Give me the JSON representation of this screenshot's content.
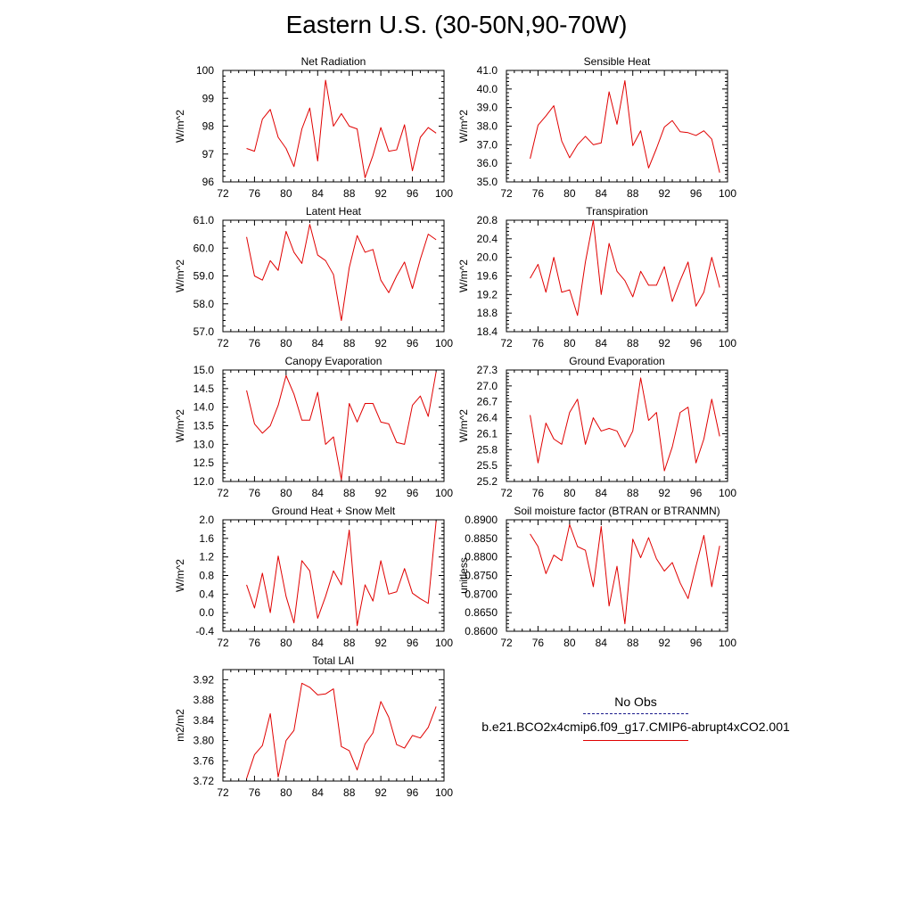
{
  "title": "Eastern U.S. (30-50N,90-70W)",
  "colors": {
    "model": "#e00000",
    "obs": "#1a1a8c",
    "axis": "#000000"
  },
  "legend": {
    "obs_label": "No Obs",
    "model_label": "b.e21.BCO2x4cmip6.f09_g17.CMIP6-abrupt4xCO2.001"
  },
  "chart_data": [
    {
      "type": "line",
      "title": "Net Radiation",
      "ylabel": "W/m^2",
      "xlim": [
        72,
        100
      ],
      "xticks": [
        "72",
        "76",
        "80",
        "84",
        "88",
        "92",
        "96",
        "100"
      ],
      "ylim": [
        96,
        100
      ],
      "yticks": [
        "96",
        "97",
        "98",
        "99",
        "100"
      ],
      "x": [
        75,
        76,
        77,
        78,
        79,
        80,
        81,
        82,
        83,
        84,
        85,
        86,
        87,
        88,
        89,
        90,
        91,
        92,
        93,
        94,
        95,
        96,
        97,
        98,
        99
      ],
      "series": [
        {
          "values": [
            97.2,
            97.1,
            98.25,
            98.6,
            97.6,
            97.2,
            96.55,
            97.9,
            98.65,
            96.75,
            99.65,
            98.0,
            98.45,
            98.0,
            97.9,
            96.15,
            96.95,
            97.95,
            97.1,
            97.15,
            98.05,
            96.4,
            97.6,
            97.95,
            97.75
          ]
        }
      ]
    },
    {
      "type": "line",
      "title": "Sensible Heat",
      "ylabel": "W/m^2",
      "xlim": [
        72,
        100
      ],
      "xticks": [
        "72",
        "76",
        "80",
        "84",
        "88",
        "92",
        "96",
        "100"
      ],
      "ylim": [
        35,
        41
      ],
      "yticks": [
        "35.0",
        "36.0",
        "37.0",
        "38.0",
        "39.0",
        "40.0",
        "41.0"
      ],
      "x": [
        75,
        76,
        77,
        78,
        79,
        80,
        81,
        82,
        83,
        84,
        85,
        86,
        87,
        88,
        89,
        90,
        91,
        92,
        93,
        94,
        95,
        96,
        97,
        98,
        99
      ],
      "series": [
        {
          "values": [
            36.25,
            38.05,
            38.55,
            39.1,
            37.2,
            36.3,
            37.0,
            37.45,
            37.0,
            37.1,
            39.85,
            38.1,
            40.45,
            36.95,
            37.75,
            35.75,
            36.8,
            37.95,
            38.3,
            37.7,
            37.65,
            37.5,
            37.75,
            37.3,
            35.5
          ]
        }
      ]
    },
    {
      "type": "line",
      "title": "Latent Heat",
      "ylabel": "W/m^2",
      "xlim": [
        72,
        100
      ],
      "xticks": [
        "72",
        "76",
        "80",
        "84",
        "88",
        "92",
        "96",
        "100"
      ],
      "ylim": [
        57,
        61
      ],
      "yticks": [
        "57.0",
        "58.0",
        "59.0",
        "60.0",
        "61.0"
      ],
      "x": [
        75,
        76,
        77,
        78,
        79,
        80,
        81,
        82,
        83,
        84,
        85,
        86,
        87,
        88,
        89,
        90,
        91,
        92,
        93,
        94,
        95,
        96,
        97,
        98,
        99
      ],
      "series": [
        {
          "values": [
            60.4,
            59.0,
            58.85,
            59.55,
            59.2,
            60.6,
            59.85,
            59.45,
            60.85,
            59.75,
            59.55,
            59.05,
            57.4,
            59.3,
            60.45,
            59.85,
            59.95,
            58.85,
            58.4,
            59.0,
            59.5,
            58.55,
            59.6,
            60.5,
            60.3
          ]
        }
      ]
    },
    {
      "type": "line",
      "title": "Transpiration",
      "ylabel": "W/m^2",
      "xlim": [
        72,
        100
      ],
      "xticks": [
        "72",
        "76",
        "80",
        "84",
        "88",
        "92",
        "96",
        "100"
      ],
      "ylim": [
        18.4,
        20.8
      ],
      "yticks": [
        "18.4",
        "18.8",
        "19.2",
        "19.6",
        "20.0",
        "20.4",
        "20.8"
      ],
      "x": [
        75,
        76,
        77,
        78,
        79,
        80,
        81,
        82,
        83,
        84,
        85,
        86,
        87,
        88,
        89,
        90,
        91,
        92,
        93,
        94,
        95,
        96,
        97,
        98,
        99
      ],
      "series": [
        {
          "values": [
            19.55,
            19.85,
            19.25,
            20.0,
            19.25,
            19.3,
            18.75,
            19.9,
            20.8,
            19.2,
            20.3,
            19.7,
            19.5,
            19.15,
            19.7,
            19.4,
            19.4,
            19.8,
            19.05,
            19.5,
            19.9,
            18.95,
            19.25,
            20.0,
            19.35
          ]
        }
      ]
    },
    {
      "type": "line",
      "title": "Canopy Evaporation",
      "ylabel": "W/m^2",
      "xlim": [
        72,
        100
      ],
      "xticks": [
        "72",
        "76",
        "80",
        "84",
        "88",
        "92",
        "96",
        "100"
      ],
      "ylim": [
        12,
        15
      ],
      "yticks": [
        "12.0",
        "12.5",
        "13.0",
        "13.5",
        "14.0",
        "14.5",
        "15.0"
      ],
      "x": [
        75,
        76,
        77,
        78,
        79,
        80,
        81,
        82,
        83,
        84,
        85,
        86,
        87,
        88,
        89,
        90,
        91,
        92,
        93,
        94,
        95,
        96,
        97,
        98,
        99
      ],
      "series": [
        {
          "values": [
            14.45,
            13.55,
            13.3,
            13.5,
            14.05,
            14.85,
            14.35,
            13.65,
            13.65,
            14.4,
            13.0,
            13.2,
            12.05,
            14.1,
            13.6,
            14.1,
            14.1,
            13.6,
            13.55,
            13.05,
            13.0,
            14.05,
            14.3,
            13.75,
            14.95
          ]
        }
      ]
    },
    {
      "type": "line",
      "title": "Ground Evaporation",
      "ylabel": "W/m^2",
      "xlim": [
        72,
        100
      ],
      "xticks": [
        "72",
        "76",
        "80",
        "84",
        "88",
        "92",
        "96",
        "100"
      ],
      "ylim": [
        25.2,
        27.3
      ],
      "yticks": [
        "25.2",
        "25.5",
        "25.8",
        "26.1",
        "26.4",
        "26.7",
        "27.0",
        "27.3"
      ],
      "x": [
        75,
        76,
        77,
        78,
        79,
        80,
        81,
        82,
        83,
        84,
        85,
        86,
        87,
        88,
        89,
        90,
        91,
        92,
        93,
        94,
        95,
        96,
        97,
        98,
        99
      ],
      "series": [
        {
          "values": [
            26.45,
            25.55,
            26.3,
            26.0,
            25.9,
            26.5,
            26.75,
            25.9,
            26.4,
            26.15,
            26.2,
            26.15,
            25.85,
            26.15,
            27.15,
            26.35,
            26.5,
            25.4,
            25.85,
            26.5,
            26.6,
            25.55,
            26.0,
            26.75,
            26.05
          ]
        }
      ]
    },
    {
      "type": "line",
      "title": "Ground Heat + Snow Melt",
      "ylabel": "W/m^2",
      "xlim": [
        72,
        100
      ],
      "xticks": [
        "72",
        "76",
        "80",
        "84",
        "88",
        "92",
        "96",
        "100"
      ],
      "ylim": [
        -0.4,
        2.0
      ],
      "yticks": [
        "-0.4",
        "0.0",
        "0.4",
        "0.8",
        "1.2",
        "1.6",
        "2.0"
      ],
      "x": [
        75,
        76,
        77,
        78,
        79,
        80,
        81,
        82,
        83,
        84,
        85,
        86,
        87,
        88,
        89,
        90,
        91,
        92,
        93,
        94,
        95,
        96,
        97,
        98,
        99
      ],
      "series": [
        {
          "values": [
            0.6,
            0.1,
            0.85,
            0.0,
            1.22,
            0.35,
            -0.22,
            1.12,
            0.9,
            -0.12,
            0.35,
            0.9,
            0.6,
            1.78,
            -0.28,
            0.6,
            0.25,
            1.12,
            0.4,
            0.45,
            0.95,
            0.42,
            0.3,
            0.2,
            1.97
          ]
        }
      ]
    },
    {
      "type": "line",
      "title": "Soil moisture factor (BTRAN or BTRANMN)",
      "ylabel": "unitless",
      "xlim": [
        72,
        100
      ],
      "xticks": [
        "72",
        "76",
        "80",
        "84",
        "88",
        "92",
        "96",
        "100"
      ],
      "ylim": [
        0.86,
        0.89
      ],
      "yticks": [
        "0.8600",
        "0.8650",
        "0.8700",
        "0.8750",
        "0.8800",
        "0.8850",
        "0.8900"
      ],
      "x": [
        75,
        76,
        77,
        78,
        79,
        80,
        81,
        82,
        83,
        84,
        85,
        86,
        87,
        88,
        89,
        90,
        91,
        92,
        93,
        94,
        95,
        96,
        97,
        98,
        99
      ],
      "series": [
        {
          "values": [
            0.8862,
            0.8828,
            0.8755,
            0.8805,
            0.879,
            0.8887,
            0.8828,
            0.8818,
            0.872,
            0.8882,
            0.8668,
            0.8775,
            0.862,
            0.8848,
            0.8798,
            0.8852,
            0.8795,
            0.8762,
            0.8785,
            0.873,
            0.8688,
            0.8775,
            0.8858,
            0.872,
            0.883
          ]
        }
      ]
    },
    {
      "type": "line",
      "title": "Total LAI",
      "ylabel": "m2/m2",
      "xlim": [
        72,
        100
      ],
      "xticks": [
        "72",
        "76",
        "80",
        "84",
        "88",
        "92",
        "96",
        "100"
      ],
      "ylim": [
        3.72,
        3.94
      ],
      "yticks": [
        "3.72",
        "3.76",
        "3.80",
        "3.84",
        "3.88",
        "3.92"
      ],
      "x": [
        75,
        76,
        77,
        78,
        79,
        80,
        81,
        82,
        83,
        84,
        85,
        86,
        87,
        88,
        89,
        90,
        91,
        92,
        93,
        94,
        95,
        96,
        97,
        98,
        99
      ],
      "series": [
        {
          "values": [
            3.725,
            3.772,
            3.79,
            3.853,
            3.728,
            3.8,
            3.82,
            3.913,
            3.905,
            3.89,
            3.892,
            3.902,
            3.788,
            3.78,
            3.742,
            3.793,
            3.815,
            3.877,
            3.846,
            3.792,
            3.785,
            3.81,
            3.805,
            3.826,
            3.867
          ]
        }
      ]
    }
  ]
}
